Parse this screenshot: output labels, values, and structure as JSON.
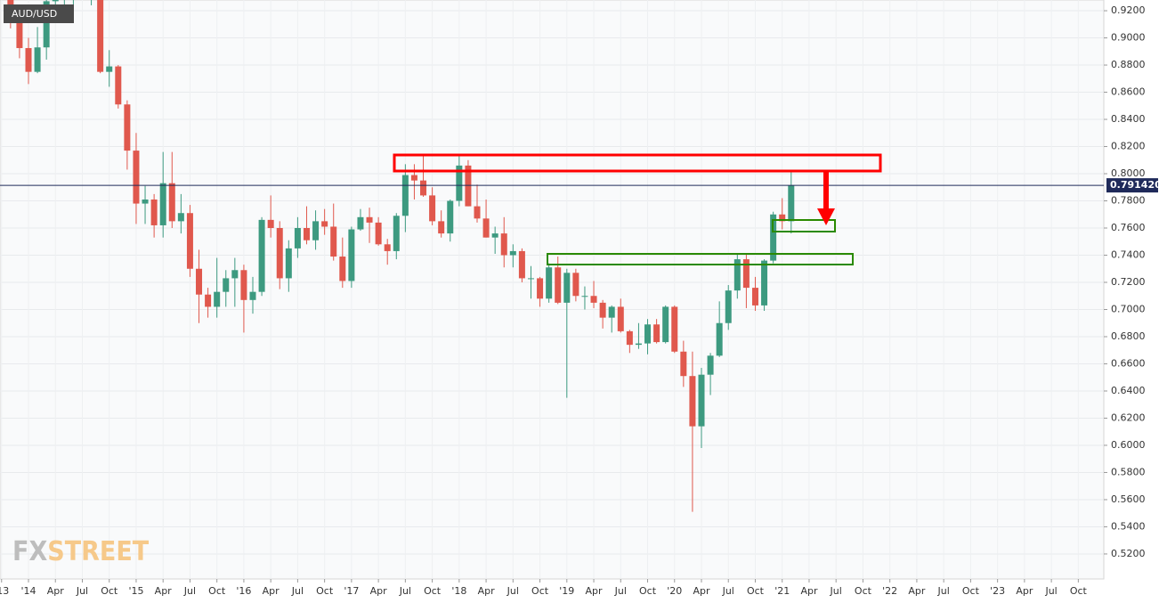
{
  "chart_data": {
    "type": "candlestick",
    "title": "AUD/USD",
    "logo_left": "FX",
    "logo_right": "STREET",
    "x": [
      "2013-11",
      "2013-12",
      "2014-01",
      "2014-02",
      "2014-03",
      "2014-04",
      "2014-05",
      "2014-06",
      "2014-07",
      "2014-08",
      "2014-09",
      "2014-10",
      "2014-11",
      "2014-12",
      "2015-01",
      "2015-02",
      "2015-03",
      "2015-04",
      "2015-05",
      "2015-06",
      "2015-07",
      "2015-08",
      "2015-09",
      "2015-10",
      "2015-11",
      "2015-12",
      "2016-01",
      "2016-02",
      "2016-03",
      "2016-04",
      "2016-05",
      "2016-06",
      "2016-07",
      "2016-08",
      "2016-09",
      "2016-10",
      "2016-11",
      "2016-12",
      "2017-01",
      "2017-02",
      "2017-03",
      "2017-04",
      "2017-05",
      "2017-06",
      "2017-07",
      "2017-08",
      "2017-09",
      "2017-10",
      "2017-11",
      "2017-12",
      "2018-01",
      "2018-02",
      "2018-03",
      "2018-04",
      "2018-05",
      "2018-06",
      "2018-07",
      "2018-08",
      "2018-09",
      "2018-10",
      "2018-11",
      "2018-12",
      "2019-01",
      "2019-02",
      "2019-03",
      "2019-04",
      "2019-05",
      "2019-06",
      "2019-07",
      "2019-08",
      "2019-09",
      "2019-10",
      "2019-11",
      "2019-12",
      "2020-01",
      "2020-02",
      "2020-03",
      "2020-04",
      "2020-05",
      "2020-06",
      "2020-07",
      "2020-08",
      "2020-09",
      "2020-10",
      "2020-11",
      "2020-12",
      "2021-01",
      "2021-02"
    ],
    "open": [
      0.935,
      0.911,
      0.8925,
      0.875,
      0.893,
      0.927,
      0.929,
      0.93,
      0.943,
      0.929,
      0.934,
      0.875,
      0.879,
      0.851,
      0.817,
      0.778,
      0.781,
      0.762,
      0.793,
      0.765,
      0.771,
      0.73,
      0.711,
      0.702,
      0.713,
      0.723,
      0.729,
      0.707,
      0.713,
      0.766,
      0.76,
      0.723,
      0.745,
      0.76,
      0.751,
      0.765,
      0.761,
      0.739,
      0.721,
      0.759,
      0.768,
      0.764,
      0.748,
      0.743,
      0.769,
      0.799,
      0.795,
      0.784,
      0.765,
      0.756,
      0.78,
      0.806,
      0.776,
      0.767,
      0.753,
      0.756,
      0.74,
      0.743,
      0.723,
      0.723,
      0.708,
      0.731,
      0.705,
      0.727,
      0.71,
      0.71,
      0.705,
      0.694,
      0.702,
      0.684,
      0.674,
      0.675,
      0.689,
      0.676,
      0.702,
      0.669,
      0.651,
      0.614,
      0.652,
      0.666,
      0.69,
      0.714,
      0.737,
      0.716,
      0.703,
      0.736,
      0.77,
      0.765
    ],
    "high": [
      0.938,
      0.917,
      0.9,
      0.908,
      0.928,
      0.938,
      0.94,
      0.946,
      0.95,
      0.94,
      0.94,
      0.891,
      0.88,
      0.854,
      0.83,
      0.791,
      0.785,
      0.816,
      0.816,
      0.785,
      0.777,
      0.744,
      0.716,
      0.738,
      0.729,
      0.738,
      0.733,
      0.724,
      0.768,
      0.784,
      0.765,
      0.751,
      0.768,
      0.776,
      0.773,
      0.774,
      0.778,
      0.753,
      0.761,
      0.774,
      0.775,
      0.768,
      0.752,
      0.771,
      0.807,
      0.807,
      0.813,
      0.79,
      0.773,
      0.781,
      0.814,
      0.81,
      0.792,
      0.781,
      0.761,
      0.768,
      0.748,
      0.745,
      0.732,
      0.724,
      0.734,
      0.739,
      0.73,
      0.73,
      0.717,
      0.721,
      0.707,
      0.703,
      0.708,
      0.685,
      0.69,
      0.693,
      0.693,
      0.703,
      0.703,
      0.677,
      0.669,
      0.657,
      0.668,
      0.706,
      0.718,
      0.741,
      0.741,
      0.724,
      0.737,
      0.772,
      0.782,
      0.801
    ],
    "low": [
      0.907,
      0.885,
      0.866,
      0.874,
      0.884,
      0.921,
      0.919,
      0.92,
      0.929,
      0.924,
      0.874,
      0.864,
      0.848,
      0.803,
      0.763,
      0.763,
      0.753,
      0.753,
      0.76,
      0.756,
      0.724,
      0.69,
      0.694,
      0.694,
      0.702,
      0.702,
      0.683,
      0.697,
      0.71,
      0.753,
      0.715,
      0.713,
      0.738,
      0.748,
      0.744,
      0.755,
      0.736,
      0.716,
      0.716,
      0.758,
      0.749,
      0.747,
      0.733,
      0.737,
      0.757,
      0.781,
      0.783,
      0.762,
      0.753,
      0.75,
      0.776,
      0.776,
      0.764,
      0.753,
      0.741,
      0.731,
      0.731,
      0.72,
      0.708,
      0.702,
      0.705,
      0.704,
      0.635,
      0.706,
      0.7,
      0.701,
      0.686,
      0.683,
      0.683,
      0.668,
      0.671,
      0.667,
      0.675,
      0.675,
      0.668,
      0.643,
      0.551,
      0.598,
      0.637,
      0.665,
      0.685,
      0.708,
      0.701,
      0.699,
      0.699,
      0.734,
      0.759,
      0.756
    ],
    "close": [
      0.911,
      0.8925,
      0.875,
      0.893,
      0.927,
      0.929,
      0.93,
      0.943,
      0.929,
      0.934,
      0.875,
      0.879,
      0.851,
      0.817,
      0.778,
      0.781,
      0.762,
      0.793,
      0.765,
      0.771,
      0.73,
      0.711,
      0.702,
      0.713,
      0.723,
      0.729,
      0.707,
      0.713,
      0.766,
      0.76,
      0.723,
      0.745,
      0.76,
      0.751,
      0.765,
      0.761,
      0.739,
      0.721,
      0.759,
      0.768,
      0.764,
      0.748,
      0.743,
      0.769,
      0.799,
      0.795,
      0.784,
      0.765,
      0.756,
      0.78,
      0.806,
      0.776,
      0.767,
      0.753,
      0.756,
      0.74,
      0.743,
      0.723,
      0.723,
      0.708,
      0.731,
      0.705,
      0.727,
      0.71,
      0.71,
      0.705,
      0.694,
      0.702,
      0.684,
      0.674,
      0.675,
      0.689,
      0.676,
      0.702,
      0.669,
      0.651,
      0.614,
      0.652,
      0.666,
      0.69,
      0.714,
      0.737,
      0.716,
      0.703,
      0.736,
      0.77,
      0.765,
      0.7914
    ],
    "up_color": "#3d9a80",
    "down_color": "#e0584d",
    "last_price": {
      "value": 0.79142,
      "label": "0.791420"
    },
    "ylim": [
      0.5016,
      0.9279
    ],
    "yticks": [
      {
        "value": 0.52,
        "label": "0.5200"
      },
      {
        "value": 0.54,
        "label": "0.5400"
      },
      {
        "value": 0.56,
        "label": "0.5600"
      },
      {
        "value": 0.58,
        "label": "0.5800"
      },
      {
        "value": 0.6,
        "label": "0.6000"
      },
      {
        "value": 0.62,
        "label": "0.6200"
      },
      {
        "value": 0.64,
        "label": "0.6400"
      },
      {
        "value": 0.66,
        "label": "0.6600"
      },
      {
        "value": 0.68,
        "label": "0.6800"
      },
      {
        "value": 0.7,
        "label": "0.7000"
      },
      {
        "value": 0.72,
        "label": "0.7200"
      },
      {
        "value": 0.74,
        "label": "0.7400"
      },
      {
        "value": 0.76,
        "label": "0.7600"
      },
      {
        "value": 0.78,
        "label": "0.7800"
      },
      {
        "value": 0.8,
        "label": "0.8000"
      },
      {
        "value": 0.82,
        "label": "0.8200"
      },
      {
        "value": 0.84,
        "label": "0.8400"
      },
      {
        "value": 0.86,
        "label": "0.8600"
      },
      {
        "value": 0.88,
        "label": "0.8800"
      },
      {
        "value": 0.9,
        "label": "0.9000"
      },
      {
        "value": 0.92,
        "label": "0.9200"
      }
    ],
    "xticks": [
      {
        "value": "2013-10",
        "label": "'13"
      },
      {
        "value": "2014-01",
        "label": "'14"
      },
      {
        "value": "2014-04",
        "label": "Apr"
      },
      {
        "value": "2014-07",
        "label": "Jul"
      },
      {
        "value": "2014-10",
        "label": "Oct"
      },
      {
        "value": "2015-01",
        "label": "'15"
      },
      {
        "value": "2015-04",
        "label": "Apr"
      },
      {
        "value": "2015-07",
        "label": "Jul"
      },
      {
        "value": "2015-10",
        "label": "Oct"
      },
      {
        "value": "2016-01",
        "label": "'16"
      },
      {
        "value": "2016-04",
        "label": "Apr"
      },
      {
        "value": "2016-07",
        "label": "Jul"
      },
      {
        "value": "2016-10",
        "label": "Oct"
      },
      {
        "value": "2017-01",
        "label": "'17"
      },
      {
        "value": "2017-04",
        "label": "Apr"
      },
      {
        "value": "2017-07",
        "label": "Jul"
      },
      {
        "value": "2017-10",
        "label": "Oct"
      },
      {
        "value": "2018-01",
        "label": "'18"
      },
      {
        "value": "2018-04",
        "label": "Apr"
      },
      {
        "value": "2018-07",
        "label": "Jul"
      },
      {
        "value": "2018-10",
        "label": "Oct"
      },
      {
        "value": "2019-01",
        "label": "'19"
      },
      {
        "value": "2019-04",
        "label": "Apr"
      },
      {
        "value": "2019-07",
        "label": "Jul"
      },
      {
        "value": "2019-10",
        "label": "Oct"
      },
      {
        "value": "2020-01",
        "label": "'20"
      },
      {
        "value": "2020-04",
        "label": "Apr"
      },
      {
        "value": "2020-07",
        "label": "Jul"
      },
      {
        "value": "2020-10",
        "label": "Oct"
      },
      {
        "value": "2021-01",
        "label": "'21"
      },
      {
        "value": "2021-04",
        "label": "Apr"
      },
      {
        "value": "2021-07",
        "label": "Jul"
      },
      {
        "value": "2021-10",
        "label": "Oct"
      },
      {
        "value": "2022-01",
        "label": "'22"
      },
      {
        "value": "2022-04",
        "label": "Apr"
      },
      {
        "value": "2022-07",
        "label": "Jul"
      },
      {
        "value": "2022-10",
        "label": "Oct"
      },
      {
        "value": "2023-01",
        "label": "'23"
      },
      {
        "value": "2023-04",
        "label": "Apr"
      },
      {
        "value": "2023-07",
        "label": "Jul"
      },
      {
        "value": "2023-10",
        "label": "Oct"
      }
    ],
    "grid": true
  }
}
